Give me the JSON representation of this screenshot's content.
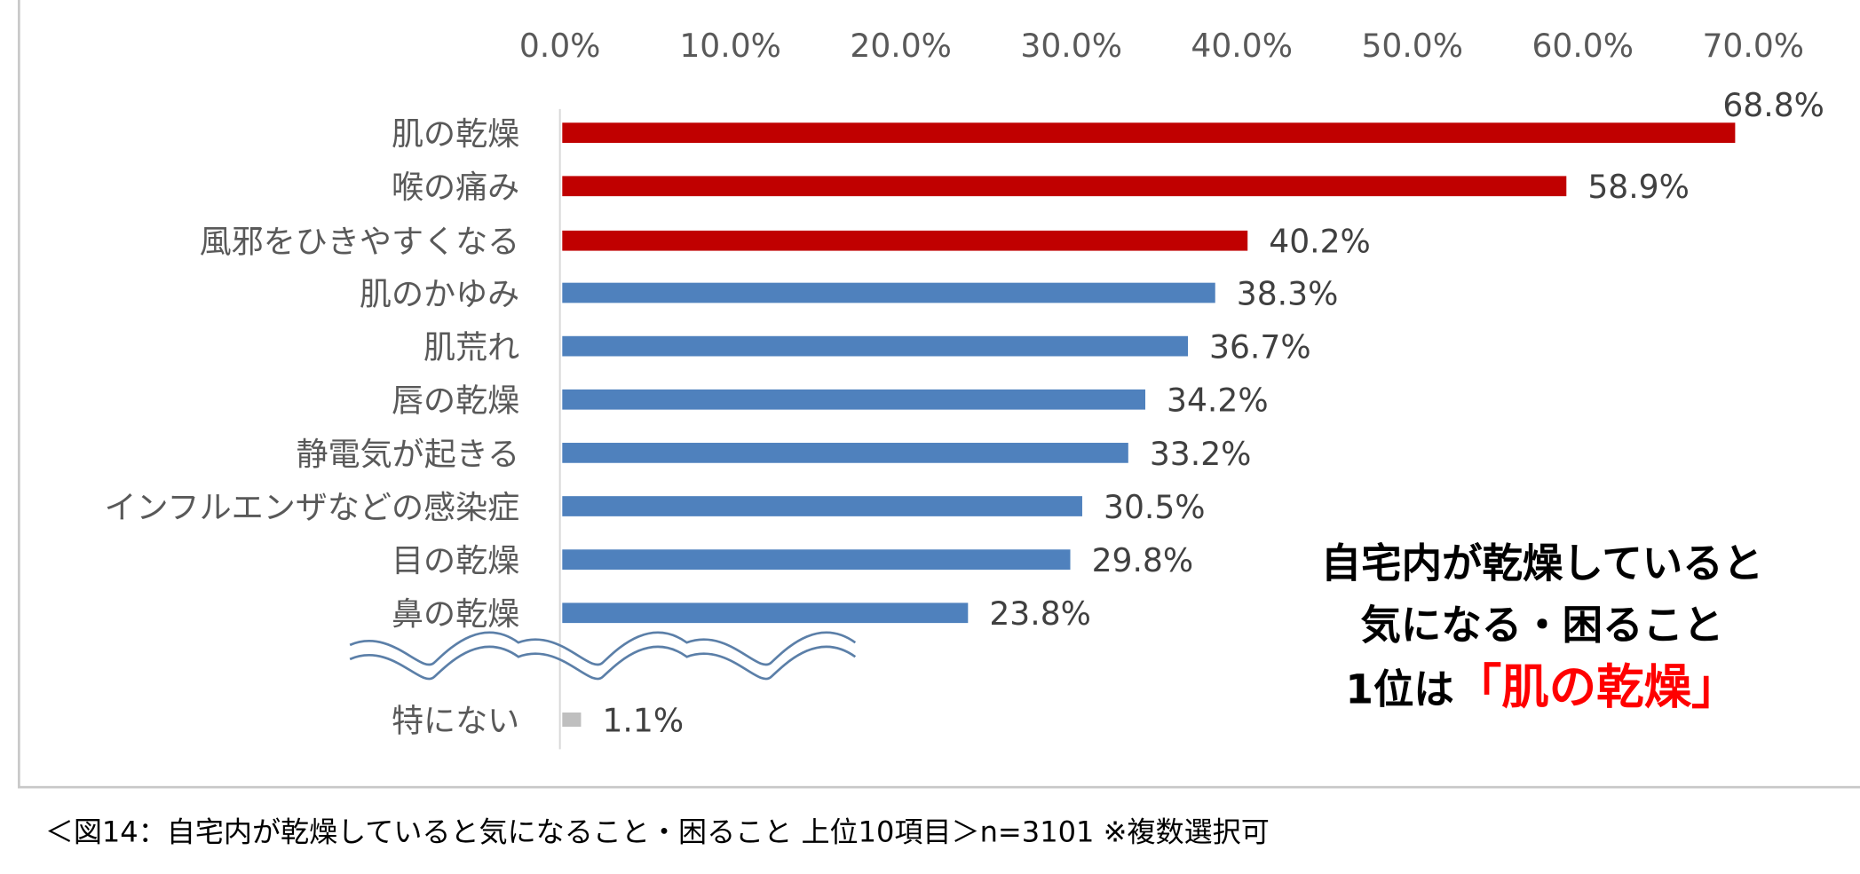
{
  "chart_data": {
    "type": "bar",
    "orientation": "horizontal",
    "title": "",
    "xlabel": "",
    "ylabel": "",
    "xlim": [
      0,
      70
    ],
    "x_ticks": [
      "0.0%",
      "10.0%",
      "20.0%",
      "30.0%",
      "40.0%",
      "50.0%",
      "60.0%",
      "70.0%"
    ],
    "grid": false,
    "categories": [
      "肌の乾燥",
      "喉の痛み",
      "風邪をひきやすくなる",
      "肌のかゆみ",
      "肌荒れ",
      "唇の乾燥",
      "静電気が起きる",
      "インフルエンザなどの感染症",
      "目の乾燥",
      "鼻の乾燥",
      "特にない"
    ],
    "values": [
      68.8,
      58.9,
      40.2,
      38.3,
      36.7,
      34.2,
      33.2,
      30.5,
      29.8,
      23.8,
      1.1
    ],
    "value_labels": [
      "68.8%",
      "58.9%",
      "40.2%",
      "38.3%",
      "36.7%",
      "34.2%",
      "33.2%",
      "30.5%",
      "29.8%",
      "23.8%",
      "1.1%"
    ],
    "bar_colors": [
      "#c00000",
      "#c00000",
      "#c00000",
      "#4f81bd",
      "#4f81bd",
      "#4f81bd",
      "#4f81bd",
      "#4f81bd",
      "#4f81bd",
      "#4f81bd",
      "#bfbfbf"
    ],
    "axis_break_before_last": true
  },
  "annotation": {
    "line1": "自宅内が乾燥していると",
    "line2": "気になる・困ること",
    "line3_prefix": "1位は",
    "line3_highlight": "「肌の乾燥」",
    "highlight_color": "#ff0000"
  },
  "caption": "＜図14：自宅内が乾燥していると気になること・困ること 上位10項目＞n=3101 ※複数選択可"
}
